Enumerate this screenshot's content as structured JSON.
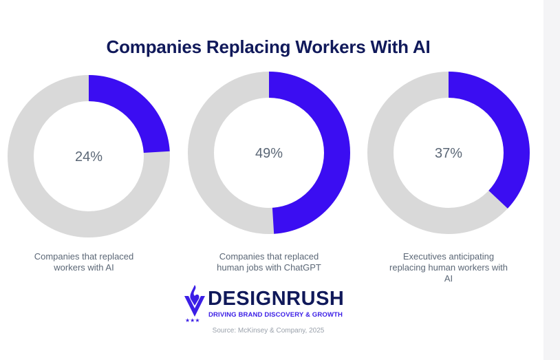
{
  "title": "Companies Replacing Workers With AI",
  "colors": {
    "accent": "#3b0df2",
    "track": "#d9d9d9",
    "title": "#10195a",
    "label": "#5b6776"
  },
  "chart_data": [
    {
      "type": "pie",
      "style": "donut",
      "values": [
        24,
        76
      ],
      "center_label": "24%",
      "caption": "Companies that replaced workers with AI"
    },
    {
      "type": "pie",
      "style": "donut",
      "values": [
        49,
        51
      ],
      "center_label": "49%",
      "caption": "Companies that replaced human jobs with ChatGPT"
    },
    {
      "type": "pie",
      "style": "donut",
      "values": [
        37,
        63
      ],
      "center_label": "37%",
      "caption": "Executives anticipating replacing human workers with AI"
    }
  ],
  "logo": {
    "name": "DESIGNRUSH",
    "tagline": "DRIVING BRAND DISCOVERY & GROWTH",
    "icon": "flame-v-icon"
  },
  "source": "Source: McKinsey & Company, 2025"
}
